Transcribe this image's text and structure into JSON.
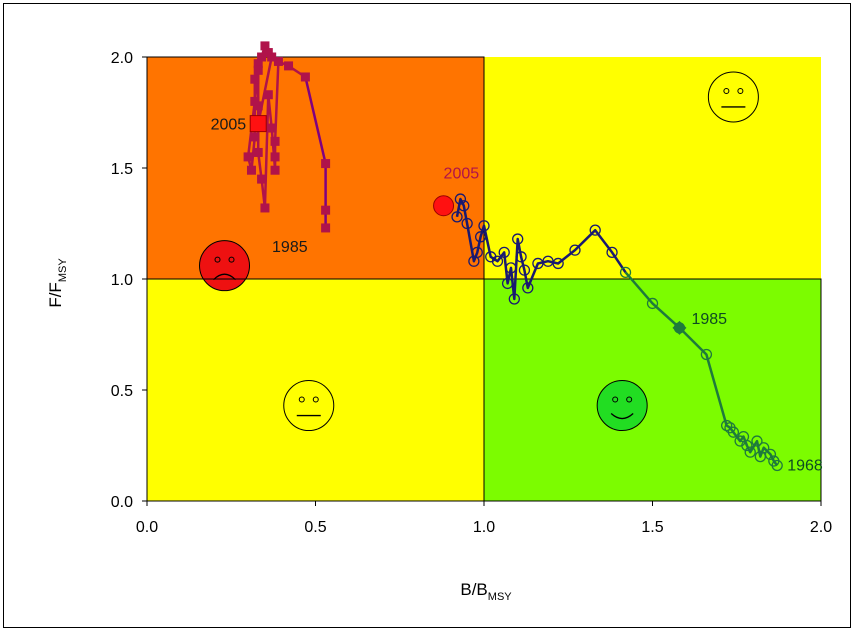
{
  "chart_data": {
    "type": "scatter",
    "xlabel": {
      "main": "B/B",
      "sub": "MSY"
    },
    "ylabel": {
      "main": "F/F",
      "sub": "MSY"
    },
    "xlim": [
      0,
      2
    ],
    "ylim": [
      0,
      2
    ],
    "x_ticks": [
      "0.0",
      "0.5",
      "1.0",
      "1.5",
      "2.0"
    ],
    "y_ticks": [
      "0.0",
      "0.5",
      "1.0",
      "1.5",
      "2.0"
    ],
    "grid": false,
    "quadrants": [
      {
        "x": [
          0,
          1
        ],
        "y": [
          1,
          2
        ],
        "color": "#FF7400",
        "face": "sad",
        "face_color": "#EE1111",
        "face_at": [
          0.23,
          1.06
        ]
      },
      {
        "x": [
          1,
          2
        ],
        "y": [
          1,
          2
        ],
        "color": "#FFFF00",
        "face": "neutral",
        "face_color": "#FFFF00",
        "face_at": [
          1.74,
          1.82
        ]
      },
      {
        "x": [
          0,
          1
        ],
        "y": [
          0,
          1
        ],
        "color": "#FFFF00",
        "face": "neutral",
        "face_color": "#FFFF00",
        "face_at": [
          0.48,
          0.43
        ]
      },
      {
        "x": [
          1,
          2
        ],
        "y": [
          0,
          1
        ],
        "color": "#7CFC00",
        "face": "happy",
        "face_color": "#22DD22",
        "face_at": [
          1.41,
          0.43
        ]
      }
    ],
    "series": [
      {
        "marker": "circle-open",
        "color": "#191970",
        "color_recent": "#1E7A3C",
        "segment_split_x": 1.42,
        "points": [
          [
            1.87,
            0.16
          ],
          [
            1.86,
            0.18
          ],
          [
            1.85,
            0.21
          ],
          [
            1.83,
            0.24
          ],
          [
            1.82,
            0.2
          ],
          [
            1.81,
            0.27
          ],
          [
            1.79,
            0.22
          ],
          [
            1.78,
            0.25
          ],
          [
            1.77,
            0.29
          ],
          [
            1.76,
            0.27
          ],
          [
            1.74,
            0.31
          ],
          [
            1.73,
            0.33
          ],
          [
            1.72,
            0.34
          ],
          [
            1.66,
            0.66
          ],
          [
            1.58,
            0.78
          ],
          [
            1.5,
            0.89
          ],
          [
            1.42,
            1.03
          ],
          [
            1.38,
            1.12
          ],
          [
            1.33,
            1.22
          ],
          [
            1.27,
            1.13
          ],
          [
            1.22,
            1.07
          ],
          [
            1.19,
            1.08
          ],
          [
            1.16,
            1.07
          ],
          [
            1.13,
            0.96
          ],
          [
            1.12,
            1.04
          ],
          [
            1.11,
            1.1
          ],
          [
            1.1,
            1.18
          ],
          [
            1.09,
            0.91
          ],
          [
            1.08,
            1.05
          ],
          [
            1.07,
            0.98
          ],
          [
            1.06,
            1.12
          ],
          [
            1.04,
            1.08
          ],
          [
            1.02,
            1.1
          ],
          [
            1.0,
            1.24
          ],
          [
            0.99,
            1.19
          ],
          [
            0.98,
            1.12
          ],
          [
            0.97,
            1.08
          ],
          [
            0.95,
            1.25
          ],
          [
            0.94,
            1.33
          ],
          [
            0.93,
            1.36
          ],
          [
            0.92,
            1.28
          ]
        ],
        "labels": [
          {
            "text": "1968",
            "at": [
              1.87,
              0.16
            ]
          },
          {
            "text": "1985",
            "at": [
              1.58,
              0.78
            ],
            "highlight": true
          },
          {
            "text": "2005",
            "at": [
              0.88,
              1.33
            ],
            "highlight": true
          }
        ]
      },
      {
        "marker": "square",
        "color": "#B0134A",
        "color_recent": "#800080",
        "segment_split_y": 1.9,
        "points": [
          [
            0.53,
            1.23
          ],
          [
            0.53,
            1.31
          ],
          [
            0.53,
            1.52
          ],
          [
            0.47,
            1.91
          ],
          [
            0.42,
            1.96
          ],
          [
            0.39,
            1.98
          ],
          [
            0.38,
            1.62
          ],
          [
            0.38,
            1.55
          ],
          [
            0.38,
            1.49
          ],
          [
            0.37,
            1.68
          ],
          [
            0.36,
            1.83
          ],
          [
            0.35,
            1.32
          ],
          [
            0.34,
            1.45
          ],
          [
            0.33,
            1.57
          ],
          [
            0.33,
            1.78
          ],
          [
            0.33,
            1.97
          ],
          [
            0.32,
            1.9
          ],
          [
            0.32,
            1.64
          ],
          [
            0.31,
            1.49
          ],
          [
            0.3,
            1.55
          ],
          [
            0.32,
            1.8
          ],
          [
            0.33,
            1.94
          ],
          [
            0.34,
            2.0
          ],
          [
            0.35,
            2.05
          ],
          [
            0.36,
            2.02
          ],
          [
            0.37,
            2.0
          ],
          [
            0.33,
            1.7
          ]
        ],
        "labels": [
          {
            "text": "1985",
            "at": [
              0.53,
              1.23
            ]
          },
          {
            "text": "2005",
            "at": [
              0.33,
              1.7
            ],
            "highlight": true
          }
        ]
      }
    ]
  }
}
